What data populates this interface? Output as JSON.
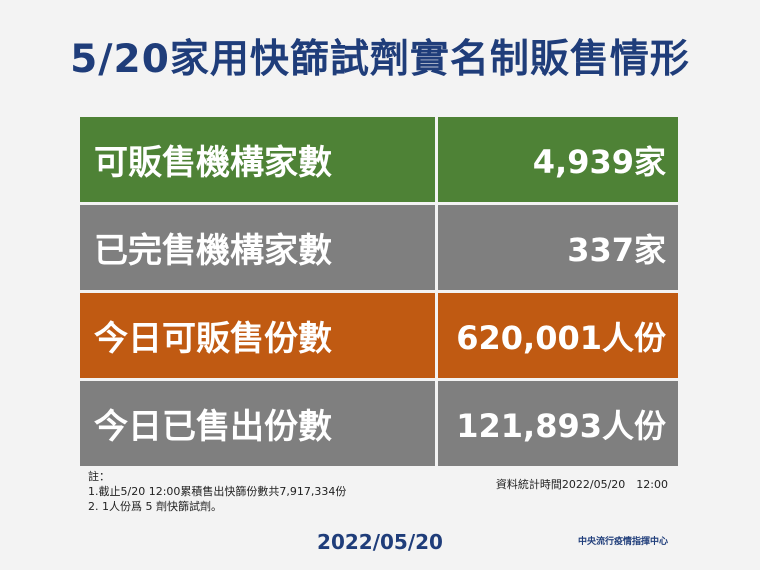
{
  "title": "5/20家用快篩試劑實名制販售情形",
  "rows": [
    {
      "label": "可販售機構家數",
      "value": "4,939家",
      "color": "#4e8236"
    },
    {
      "label": "已完售機構家數",
      "value": "337家",
      "color": "#7f7f7f"
    },
    {
      "label": "今日可販售份數",
      "value": "620,001人份",
      "color": "#c05a12"
    },
    {
      "label": "今日已售出份數",
      "value": "121,893人份",
      "color": "#7f7f7f"
    }
  ],
  "notes": {
    "heading": "註：",
    "items": [
      "1.截止5/20 12:00累積售出快篩份數共7,917,334份",
      "2. 1人份爲 5 劑快篩試劑。"
    ]
  },
  "stat_time": "資料統計時間2022/05/20　12:00",
  "date": "2022/05/20",
  "org": "中央流行疫情指揮中心"
}
